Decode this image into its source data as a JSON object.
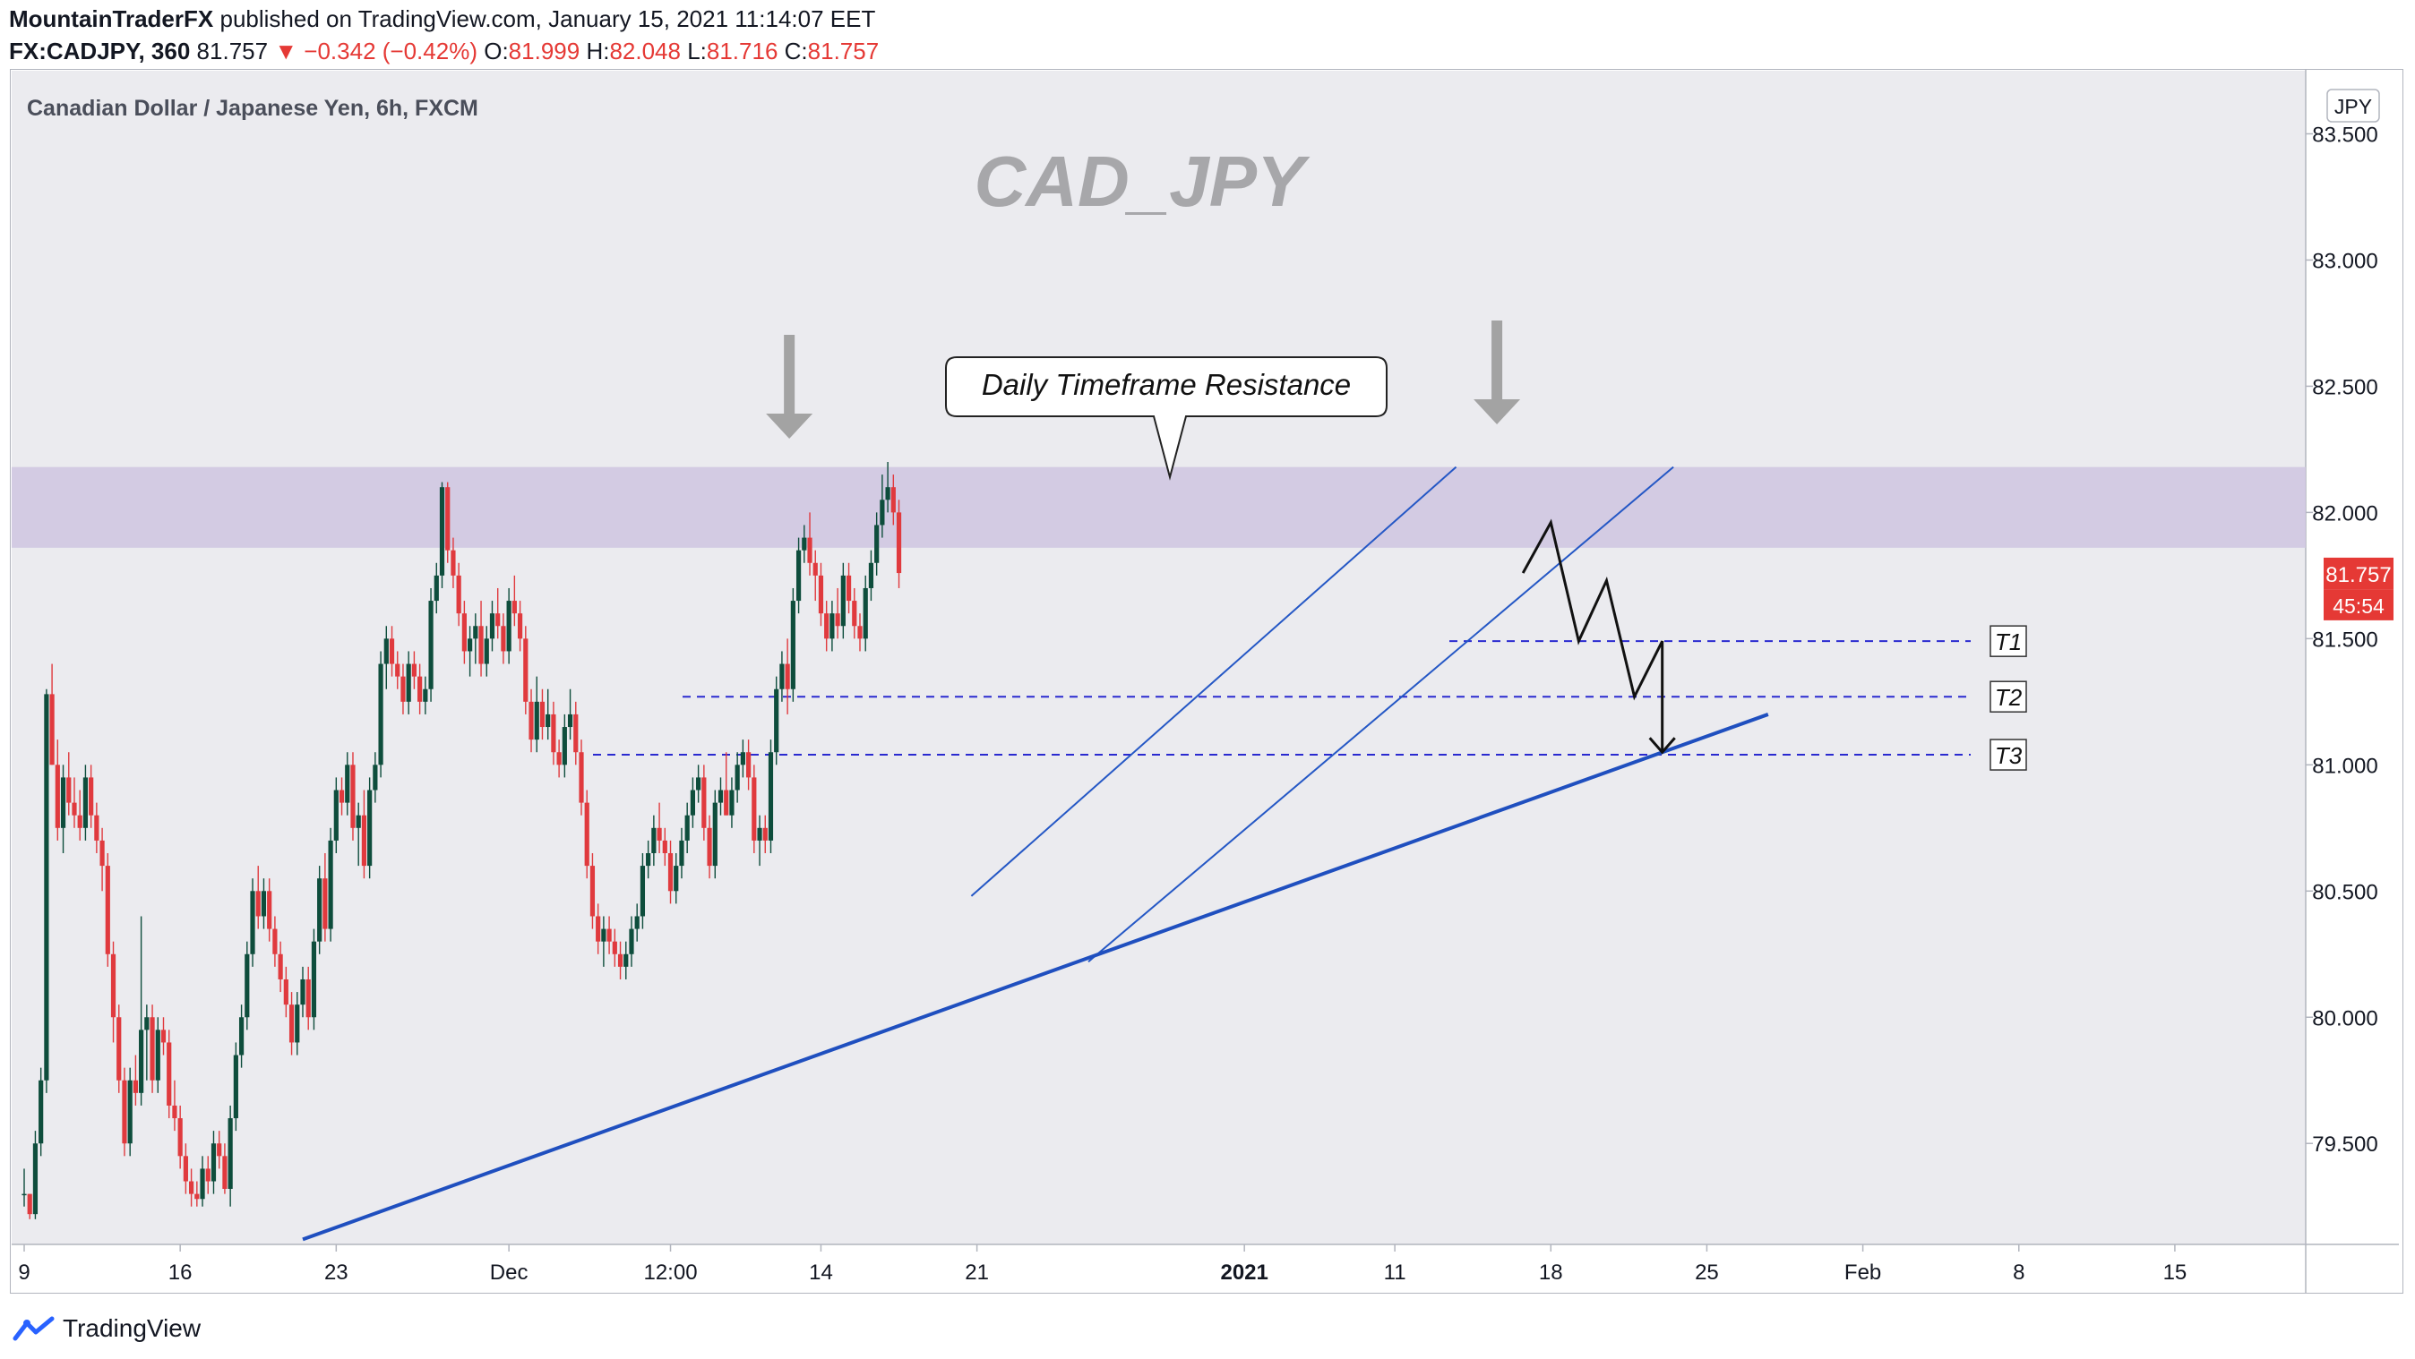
{
  "header": {
    "author": "MountainTraderFX",
    "published": "published on TradingView.com, January 15, 2021 11:14:07 EET",
    "symbol": "FX:CADJPY, 360",
    "last": "81.757",
    "change": "−0.342 (−0.42%)",
    "o_label": "O:",
    "o_value": "81.999",
    "h_label": "H:",
    "h_value": "82.048",
    "l_label": "L:",
    "l_value": "81.716",
    "c_label": "C:",
    "c_value": "81.757"
  },
  "footer": {
    "brand": "TradingView"
  },
  "colors": {
    "background": "#ebebef",
    "up": "#0e4d3c",
    "down": "#e03a3e",
    "zone": "#cfc5e0",
    "trend": "#1f4fbf",
    "channel": "#2457c5",
    "target_line": "#2a2ad0",
    "price_badge": "#e53935",
    "arrow": "#a3a3a3"
  },
  "chart_data": {
    "type": "candlestick",
    "title": "Canadian Dollar / Japanese Yen, 6h, FXCM",
    "watermark": "CAD_JPY",
    "currency": "JPY",
    "ylim": [
      79.1,
      83.75
    ],
    "y_ticks": [
      "83.500",
      "83.000",
      "82.500",
      "82.000",
      "81.500",
      "81.000",
      "80.500",
      "80.000",
      "79.500"
    ],
    "x_ticks": [
      {
        "label": "9",
        "bar": 0
      },
      {
        "label": "16",
        "bar": 28
      },
      {
        "label": "23",
        "bar": 56
      },
      {
        "label": "Dec",
        "bar": 87
      },
      {
        "label": "12:00",
        "bar": 116
      },
      {
        "label": "14",
        "bar": 143
      },
      {
        "label": "21",
        "bar": 171
      },
      {
        "label": "2021",
        "bar": 219
      },
      {
        "label": "11",
        "bar": 246
      },
      {
        "label": "18",
        "bar": 274
      },
      {
        "label": "25",
        "bar": 302
      },
      {
        "label": "Feb",
        "bar": 330
      },
      {
        "label": "8",
        "bar": 358
      },
      {
        "label": "15",
        "bar": 386
      }
    ],
    "last_price": "81.757",
    "countdown": "45:54",
    "resistance_zone": {
      "low": 81.86,
      "high": 82.18,
      "label": "Daily Timeframe Resistance"
    },
    "targets": [
      {
        "label": "T1",
        "price": 81.49
      },
      {
        "label": "T2",
        "price": 81.27
      },
      {
        "label": "T3",
        "price": 81.04
      }
    ],
    "trendline": {
      "from": {
        "bar": 50,
        "price": 79.12
      },
      "to": {
        "bar": 313,
        "price": 81.2
      }
    },
    "channel_upper": {
      "from": {
        "bar": 170,
        "price": 80.48
      },
      "to": {
        "bar": 257,
        "price": 82.18
      }
    },
    "channel_lower": {
      "from": {
        "bar": 191,
        "price": 80.22
      },
      "to": {
        "bar": 296,
        "price": 82.18
      }
    },
    "projection": [
      {
        "bar": 269,
        "price": 81.76
      },
      {
        "bar": 274,
        "price": 81.96
      },
      {
        "bar": 279,
        "price": 81.49
      },
      {
        "bar": 284,
        "price": 81.73
      },
      {
        "bar": 289,
        "price": 81.27
      },
      {
        "bar": 294,
        "price": 81.49
      },
      {
        "bar": 294,
        "price": 81.05
      }
    ],
    "top_arrows": [
      {
        "bar": 137
      },
      {
        "bar": 264
      }
    ],
    "ohlc": [
      [
        79.3,
        79.4,
        79.25,
        79.3
      ],
      [
        79.3,
        79.3,
        79.2,
        79.22
      ],
      [
        79.22,
        79.55,
        79.2,
        79.5
      ],
      [
        79.5,
        79.8,
        79.45,
        79.75
      ],
      [
        79.75,
        81.3,
        79.7,
        81.28
      ],
      [
        81.28,
        81.4,
        81.0,
        81.0
      ],
      [
        81.0,
        81.1,
        80.7,
        80.75
      ],
      [
        80.75,
        81.0,
        80.65,
        80.95
      ],
      [
        80.95,
        81.05,
        80.8,
        80.85
      ],
      [
        80.85,
        80.95,
        80.75,
        80.8
      ],
      [
        80.8,
        80.9,
        80.7,
        80.75
      ],
      [
        80.75,
        81.0,
        80.7,
        80.95
      ],
      [
        80.95,
        81.0,
        80.75,
        80.8
      ],
      [
        80.8,
        80.85,
        80.65,
        80.7
      ],
      [
        80.7,
        80.75,
        80.5,
        80.6
      ],
      [
        80.6,
        80.65,
        80.2,
        80.25
      ],
      [
        80.25,
        80.3,
        79.9,
        80.0
      ],
      [
        80.0,
        80.05,
        79.7,
        79.75
      ],
      [
        79.75,
        79.8,
        79.45,
        79.5
      ],
      [
        79.5,
        79.8,
        79.45,
        79.75
      ],
      [
        79.75,
        79.85,
        79.65,
        79.7
      ],
      [
        79.7,
        80.4,
        79.65,
        79.95
      ],
      [
        79.95,
        80.05,
        79.75,
        80.0
      ],
      [
        80.0,
        80.05,
        79.7,
        79.75
      ],
      [
        79.75,
        80.0,
        79.7,
        79.95
      ],
      [
        79.95,
        80.0,
        79.85,
        79.9
      ],
      [
        79.9,
        79.95,
        79.6,
        79.65
      ],
      [
        79.65,
        79.75,
        79.55,
        79.6
      ],
      [
        79.6,
        79.65,
        79.4,
        79.45
      ],
      [
        79.45,
        79.5,
        79.3,
        79.35
      ],
      [
        79.35,
        79.4,
        79.25,
        79.3
      ],
      [
        79.3,
        79.35,
        79.25,
        79.28
      ],
      [
        79.28,
        79.45,
        79.25,
        79.4
      ],
      [
        79.4,
        79.45,
        79.3,
        79.35
      ],
      [
        79.35,
        79.55,
        79.3,
        79.5
      ],
      [
        79.5,
        79.55,
        79.4,
        79.45
      ],
      [
        79.45,
        79.5,
        79.3,
        79.32
      ],
      [
        79.32,
        79.65,
        79.25,
        79.6
      ],
      [
        79.6,
        79.9,
        79.55,
        79.85
      ],
      [
        79.85,
        80.05,
        79.8,
        80.0
      ],
      [
        80.0,
        80.3,
        79.95,
        80.25
      ],
      [
        80.25,
        80.55,
        80.2,
        80.5
      ],
      [
        80.5,
        80.6,
        80.35,
        80.4
      ],
      [
        80.4,
        80.55,
        80.35,
        80.5
      ],
      [
        80.5,
        80.55,
        80.3,
        80.35
      ],
      [
        80.35,
        80.4,
        80.2,
        80.25
      ],
      [
        80.25,
        80.3,
        80.1,
        80.15
      ],
      [
        80.15,
        80.2,
        80.0,
        80.05
      ],
      [
        80.05,
        80.1,
        79.85,
        79.9
      ],
      [
        79.9,
        80.1,
        79.85,
        80.05
      ],
      [
        80.05,
        80.2,
        80.0,
        80.15
      ],
      [
        80.15,
        80.2,
        79.95,
        80.0
      ],
      [
        80.0,
        80.35,
        79.95,
        80.3
      ],
      [
        80.3,
        80.6,
        80.25,
        80.55
      ],
      [
        80.55,
        80.65,
        80.3,
        80.35
      ],
      [
        80.35,
        80.75,
        80.3,
        80.7
      ],
      [
        80.7,
        80.95,
        80.65,
        80.9
      ],
      [
        80.9,
        80.95,
        80.8,
        80.85
      ],
      [
        80.85,
        81.05,
        80.8,
        81.0
      ],
      [
        81.0,
        81.05,
        80.7,
        80.75
      ],
      [
        80.75,
        80.85,
        80.6,
        80.8
      ],
      [
        80.8,
        80.9,
        80.55,
        80.6
      ],
      [
        80.6,
        80.95,
        80.55,
        80.9
      ],
      [
        80.9,
        81.05,
        80.85,
        81.0
      ],
      [
        81.0,
        81.45,
        80.95,
        81.4
      ],
      [
        81.4,
        81.55,
        81.3,
        81.5
      ],
      [
        81.5,
        81.55,
        81.35,
        81.4
      ],
      [
        81.4,
        81.45,
        81.3,
        81.35
      ],
      [
        81.35,
        81.4,
        81.2,
        81.25
      ],
      [
        81.25,
        81.45,
        81.2,
        81.4
      ],
      [
        81.4,
        81.45,
        81.3,
        81.35
      ],
      [
        81.35,
        81.4,
        81.2,
        81.25
      ],
      [
        81.25,
        81.35,
        81.2,
        81.3
      ],
      [
        81.3,
        81.7,
        81.25,
        81.65
      ],
      [
        81.65,
        81.8,
        81.6,
        81.75
      ],
      [
        81.75,
        82.12,
        81.7,
        82.1
      ],
      [
        82.1,
        82.12,
        81.8,
        81.85
      ],
      [
        81.85,
        81.9,
        81.7,
        81.75
      ],
      [
        81.75,
        81.8,
        81.55,
        81.6
      ],
      [
        81.6,
        81.65,
        81.4,
        81.45
      ],
      [
        81.45,
        81.55,
        81.35,
        81.5
      ],
      [
        81.5,
        81.6,
        81.4,
        81.55
      ],
      [
        81.55,
        81.65,
        81.35,
        81.4
      ],
      [
        81.4,
        81.55,
        81.35,
        81.5
      ],
      [
        81.5,
        81.65,
        81.45,
        81.6
      ],
      [
        81.6,
        81.7,
        81.5,
        81.55
      ],
      [
        81.55,
        81.6,
        81.4,
        81.45
      ],
      [
        81.45,
        81.7,
        81.4,
        81.65
      ],
      [
        81.65,
        81.75,
        81.55,
        81.6
      ],
      [
        81.6,
        81.65,
        81.45,
        81.5
      ],
      [
        81.5,
        81.55,
        81.2,
        81.25
      ],
      [
        81.25,
        81.3,
        81.05,
        81.1
      ],
      [
        81.1,
        81.35,
        81.05,
        81.25
      ],
      [
        81.25,
        81.3,
        81.1,
        81.15
      ],
      [
        81.15,
        81.3,
        81.1,
        81.2
      ],
      [
        81.2,
        81.25,
        81.0,
        81.05
      ],
      [
        81.05,
        81.1,
        80.95,
        81.0
      ],
      [
        81.0,
        81.2,
        80.95,
        81.15
      ],
      [
        81.15,
        81.3,
        81.1,
        81.2
      ],
      [
        81.2,
        81.25,
        81.0,
        81.05
      ],
      [
        81.05,
        81.1,
        80.8,
        80.85
      ],
      [
        80.85,
        80.9,
        80.55,
        80.6
      ],
      [
        80.6,
        80.65,
        80.35,
        80.4
      ],
      [
        80.4,
        80.45,
        80.25,
        80.3
      ],
      [
        80.3,
        80.4,
        80.2,
        80.35
      ],
      [
        80.35,
        80.4,
        80.25,
        80.3
      ],
      [
        80.3,
        80.35,
        80.2,
        80.25
      ],
      [
        80.25,
        80.3,
        80.15,
        80.2
      ],
      [
        80.2,
        80.3,
        80.15,
        80.25
      ],
      [
        80.25,
        80.4,
        80.2,
        80.35
      ],
      [
        80.35,
        80.45,
        80.3,
        80.4
      ],
      [
        80.4,
        80.65,
        80.35,
        80.6
      ],
      [
        80.6,
        80.7,
        80.55,
        80.65
      ],
      [
        80.65,
        80.8,
        80.6,
        80.75
      ],
      [
        80.75,
        80.85,
        80.65,
        80.7
      ],
      [
        80.7,
        80.75,
        80.6,
        80.65
      ],
      [
        80.65,
        80.7,
        80.45,
        80.5
      ],
      [
        80.5,
        80.65,
        80.45,
        80.6
      ],
      [
        80.6,
        80.75,
        80.55,
        80.7
      ],
      [
        80.7,
        80.85,
        80.65,
        80.8
      ],
      [
        80.8,
        80.95,
        80.75,
        80.9
      ],
      [
        80.9,
        81.0,
        80.85,
        80.95
      ],
      [
        80.95,
        81.0,
        80.7,
        80.75
      ],
      [
        80.75,
        80.8,
        80.55,
        80.6
      ],
      [
        80.6,
        80.9,
        80.55,
        80.85
      ],
      [
        80.85,
        80.95,
        80.8,
        80.9
      ],
      [
        80.9,
        81.05,
        80.8,
        80.8
      ],
      [
        80.8,
        80.95,
        80.75,
        80.9
      ],
      [
        80.9,
        81.05,
        80.85,
        81.0
      ],
      [
        81.0,
        81.1,
        80.95,
        81.05
      ],
      [
        81.05,
        81.1,
        80.9,
        80.95
      ],
      [
        80.95,
        81.0,
        80.65,
        80.7
      ],
      [
        80.7,
        80.8,
        80.6,
        80.75
      ],
      [
        80.75,
        80.8,
        80.65,
        80.7
      ],
      [
        80.7,
        81.1,
        80.65,
        81.05
      ],
      [
        81.05,
        81.35,
        81.0,
        81.3
      ],
      [
        81.3,
        81.45,
        81.25,
        81.4
      ],
      [
        81.4,
        81.5,
        81.2,
        81.3
      ],
      [
        81.3,
        81.7,
        81.25,
        81.65
      ],
      [
        81.65,
        81.9,
        81.6,
        81.85
      ],
      [
        81.85,
        81.95,
        81.8,
        81.9
      ],
      [
        81.9,
        82.0,
        81.75,
        81.8
      ],
      [
        81.8,
        81.85,
        81.65,
        81.75
      ],
      [
        81.75,
        81.8,
        81.55,
        81.6
      ],
      [
        81.6,
        81.65,
        81.45,
        81.5
      ],
      [
        81.5,
        81.65,
        81.45,
        81.6
      ],
      [
        81.6,
        81.7,
        81.5,
        81.55
      ],
      [
        81.55,
        81.8,
        81.5,
        81.75
      ],
      [
        81.75,
        81.8,
        81.6,
        81.65
      ],
      [
        81.65,
        81.7,
        81.5,
        81.55
      ],
      [
        81.55,
        81.6,
        81.45,
        81.5
      ],
      [
        81.5,
        81.75,
        81.45,
        81.7
      ],
      [
        81.7,
        81.85,
        81.65,
        81.8
      ],
      [
        81.8,
        82.0,
        81.75,
        81.95
      ],
      [
        81.95,
        82.15,
        81.9,
        82.05
      ],
      [
        82.05,
        82.2,
        82.0,
        82.1
      ],
      [
        82.1,
        82.15,
        81.95,
        82.0
      ],
      [
        82.0,
        82.05,
        81.7,
        81.76
      ]
    ]
  }
}
